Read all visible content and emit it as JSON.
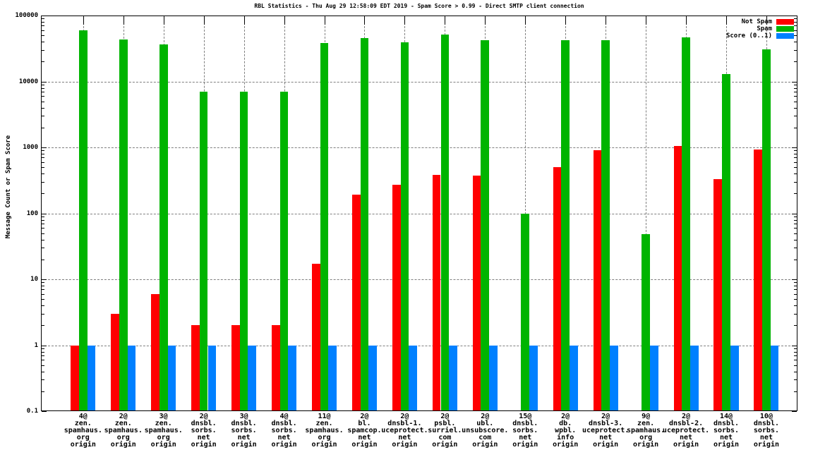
{
  "title": "RBL Statistics - Thu Aug 29 12:58:09 EDT 2019 - Spam Score > 0.99 - Direct SMTP client connection",
  "y_axis": {
    "label": "Message Count or Spam Score",
    "tick_labels": [
      "100000",
      "10000",
      "1000",
      "100",
      "10",
      "1",
      "0.1"
    ]
  },
  "legend": [
    {
      "label": "Not Spam",
      "color": "#ff0000"
    },
    {
      "label": "Spam",
      "color": "#00b400"
    },
    {
      "label": "Score (0..1)",
      "color": "#0080ff"
    }
  ],
  "colors": {
    "not_spam": "#ff0000",
    "spam": "#00b400",
    "score": "#0080ff",
    "grid": "#7f7f7f",
    "frame": "#000000",
    "background": "#ffffff"
  },
  "chart_data": {
    "type": "bar",
    "scale": "log10",
    "ylim": [
      0.1,
      100000
    ],
    "grid": "major-dashed-horizontal-and-vertical",
    "legend_position": "top-right-inside",
    "title": "RBL Statistics - Thu Aug 29 12:58:09 EDT 2019 - Spam Score > 0.99 - Direct SMTP client connection",
    "xlabel": "",
    "ylabel": "Message Count or Spam Score",
    "categories": [
      [
        "4@",
        "zen.",
        "spamhaus.",
        "org",
        "origin"
      ],
      [
        "2@",
        "zen.",
        "spamhaus.",
        "org",
        "origin"
      ],
      [
        "3@",
        "zen.",
        "spamhaus.",
        "org",
        "origin"
      ],
      [
        "2@",
        "dnsbl.",
        "sorbs.",
        "net",
        "origin"
      ],
      [
        "3@",
        "dnsbl.",
        "sorbs.",
        "net",
        "origin"
      ],
      [
        "4@",
        "dnsbl.",
        "sorbs.",
        "net",
        "origin"
      ],
      [
        "11@",
        "zen.",
        "spamhaus.",
        "org",
        "origin"
      ],
      [
        "2@",
        "bl.",
        "spamcop.",
        "net",
        "origin"
      ],
      [
        "2@",
        "dnsbl-1.",
        "uceprotect.",
        "net",
        "origin"
      ],
      [
        "2@",
        "psbl.",
        "surriel.",
        "com",
        "origin"
      ],
      [
        "2@",
        "ubl.",
        "unsubscore.",
        "com",
        "origin"
      ],
      [
        "15@",
        "dnsbl.",
        "sorbs.",
        "net",
        "origin"
      ],
      [
        "2@",
        "db.",
        "wpbl.",
        "info",
        "origin"
      ],
      [
        "2@",
        "dnsbl-3.",
        "uceprotect.",
        "net",
        "origin"
      ],
      [
        "9@",
        "zen.",
        "spamhaus.",
        "org",
        "origin"
      ],
      [
        "2@",
        "dnsbl-2.",
        "uceprotect.",
        "net",
        "origin"
      ],
      [
        "14@",
        "dnsbl.",
        "sorbs.",
        "net",
        "origin"
      ],
      [
        "10@",
        "dnsbl.",
        "sorbs.",
        "net",
        "origin"
      ]
    ],
    "series": [
      {
        "name": "Not Spam",
        "color": "#ff0000",
        "values": [
          1,
          3,
          6,
          2,
          2,
          2,
          17,
          190,
          270,
          380,
          370,
          null,
          500,
          900,
          null,
          1050,
          330,
          940
        ]
      },
      {
        "name": "Spam",
        "color": "#00b400",
        "values": [
          60000,
          43000,
          36000,
          7000,
          7000,
          7000,
          38000,
          46000,
          39000,
          52000,
          42000,
          100,
          42000,
          42000,
          48,
          47000,
          13000,
          31000
        ]
      },
      {
        "name": "Score (0..1)",
        "color": "#0080ff",
        "values": [
          0.99,
          0.99,
          0.99,
          0.99,
          0.99,
          0.99,
          0.99,
          0.99,
          0.99,
          0.99,
          0.99,
          0.99,
          0.99,
          0.99,
          0.99,
          0.99,
          0.99,
          0.99
        ]
      }
    ]
  }
}
